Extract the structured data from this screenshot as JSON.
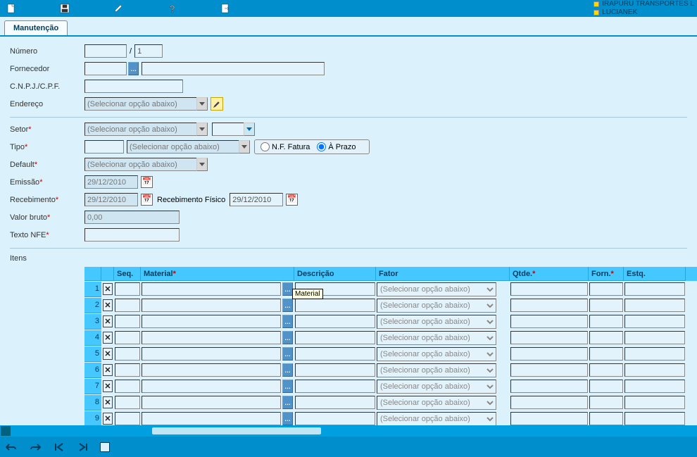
{
  "header": {
    "company": "IRAPURU TRANSPORTES L",
    "user": "LUCIANEK"
  },
  "tab": {
    "label": "Manutenção"
  },
  "labels": {
    "numero": "Número",
    "fornecedor": "Fornecedor",
    "cnpj": "C.N.P.J./C.P.F.",
    "endereco": "Endereço",
    "setor": "Setor",
    "tipo": "Tipo",
    "default": "Default",
    "emissao": "Emissão",
    "recebimento": "Recebimento",
    "recebimento_fisico": "Recebimento Físico",
    "valor_bruto": "Valor bruto",
    "texto_nfe": "Texto NFE",
    "itens": "Itens"
  },
  "values": {
    "numero_a": "",
    "numero_b": "1",
    "fornecedor_code": "",
    "fornecedor_name": "",
    "cnpj": "",
    "endereco_sel": "(Selecionar opção abaixo)",
    "setor_sel": "(Selecionar opção abaixo)",
    "setor_extra": "",
    "tipo_code": "",
    "tipo_sel": "(Selecionar opção abaixo)",
    "default_sel": "(Selecionar opção abaixo)",
    "emissao": "29/12/2010",
    "recebimento": "29/12/2010",
    "recebimento_fisico": "29/12/2010",
    "valor_bruto": "0,00",
    "texto_nfe": ""
  },
  "radio": {
    "nf_fatura": "N.F. Fatura",
    "a_prazo": "À Prazo",
    "selected": "a_prazo"
  },
  "tooltip": {
    "material": "Material"
  },
  "grid": {
    "headers": {
      "seq": "Seq.",
      "material": "Material",
      "descricao": "Descrição",
      "fator": "Fator",
      "qtde": "Qtde.",
      "forn": "Forn.",
      "estq": "Estq."
    },
    "col_widths": {
      "num": 24,
      "del": 18,
      "seq": 38,
      "mat": 200,
      "matbtn": 18,
      "desc": 116,
      "fator": 190,
      "qtde": 112,
      "forn": 50,
      "estq": 88
    },
    "fator_placeholder": "(Selecionar opção abaixo)",
    "rows": [
      {
        "n": 1,
        "seq": "",
        "material": "",
        "descricao": "",
        "fator": "",
        "qtde": "",
        "forn": "",
        "estq": ""
      },
      {
        "n": 2,
        "seq": "",
        "material": "",
        "descricao": "",
        "fator": "",
        "qtde": "",
        "forn": "",
        "estq": ""
      },
      {
        "n": 3,
        "seq": "",
        "material": "",
        "descricao": "",
        "fator": "",
        "qtde": "",
        "forn": "",
        "estq": ""
      },
      {
        "n": 4,
        "seq": "",
        "material": "",
        "descricao": "",
        "fator": "",
        "qtde": "",
        "forn": "",
        "estq": ""
      },
      {
        "n": 5,
        "seq": "",
        "material": "",
        "descricao": "",
        "fator": "",
        "qtde": "",
        "forn": "",
        "estq": ""
      },
      {
        "n": 6,
        "seq": "",
        "material": "",
        "descricao": "",
        "fator": "",
        "qtde": "",
        "forn": "",
        "estq": ""
      },
      {
        "n": 7,
        "seq": "",
        "material": "",
        "descricao": "",
        "fator": "",
        "qtde": "",
        "forn": "",
        "estq": ""
      },
      {
        "n": 8,
        "seq": "",
        "material": "",
        "descricao": "",
        "fator": "",
        "qtde": "",
        "forn": "",
        "estq": ""
      },
      {
        "n": 9,
        "seq": "",
        "material": "",
        "descricao": "",
        "fator": "",
        "qtde": "",
        "forn": "",
        "estq": ""
      }
    ]
  },
  "colors": {
    "toolbar_bg": "#008ecc",
    "panel_bg": "#dbf1fb",
    "input_bg": "#e3f3fb",
    "header_bg": "#44c8ff",
    "required": "#c00"
  }
}
